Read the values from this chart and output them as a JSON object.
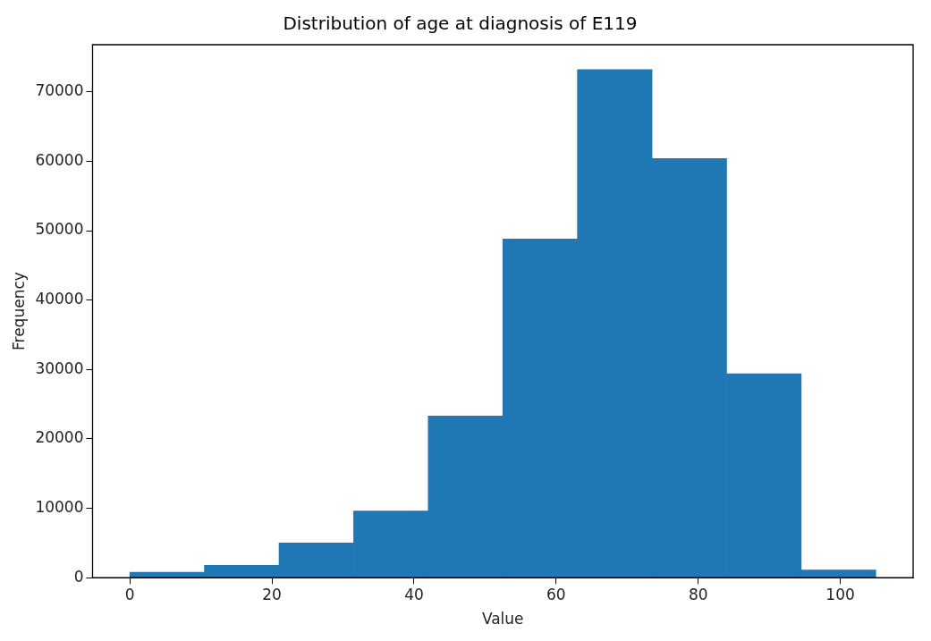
{
  "chart_data": {
    "type": "histogram",
    "title": "Distribution of age at diagnosis of E119",
    "xlabel": "Value",
    "ylabel": "Frequency",
    "bins": [
      0,
      10.5,
      21,
      31.5,
      42,
      52.5,
      63,
      73.5,
      84,
      94.5,
      105
    ],
    "values": [
      800,
      1800,
      5000,
      9600,
      23300,
      48800,
      73200,
      60400,
      29400,
      1100
    ],
    "color": "#1f77b4",
    "xlim": [
      -5.25,
      110.25
    ],
    "xticks": [
      0,
      20,
      40,
      60,
      80,
      100
    ],
    "ylim": [
      0,
      76800
    ],
    "yticks": [
      0,
      10000,
      20000,
      30000,
      40000,
      50000,
      60000,
      70000
    ],
    "grid": false
  }
}
